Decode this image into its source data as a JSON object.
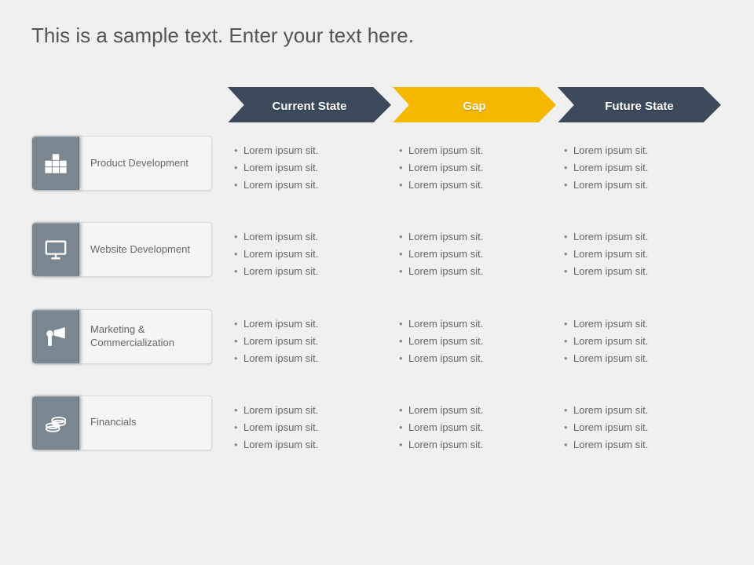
{
  "title": "This is a sample text. Enter your text here.",
  "colors": {
    "chevron_dark": "#3c4a5c",
    "chevron_highlight": "#f5b800",
    "icon_box": "#7a8690",
    "icon_box_border": "#5a6670",
    "card_bg": "#f5f5f5",
    "page_bg": "#f0f0f0",
    "text_muted": "#666666"
  },
  "columns": [
    {
      "label": "Current State",
      "highlight": false
    },
    {
      "label": "Gap",
      "highlight": true
    },
    {
      "label": "Future State",
      "highlight": false
    }
  ],
  "rows": [
    {
      "icon": "blocks",
      "label": "Product Development",
      "cells": [
        [
          "Lorem ipsum sit.",
          "Lorem ipsum sit.",
          "Lorem ipsum sit."
        ],
        [
          "Lorem ipsum sit.",
          "Lorem ipsum sit.",
          "Lorem ipsum sit."
        ],
        [
          "Lorem ipsum sit.",
          "Lorem ipsum sit.",
          "Lorem ipsum sit."
        ]
      ]
    },
    {
      "icon": "monitor",
      "label": "Website Development",
      "cells": [
        [
          "Lorem ipsum sit.",
          "Lorem ipsum sit.",
          "Lorem ipsum sit."
        ],
        [
          "Lorem ipsum sit.",
          "Lorem ipsum sit.",
          "Lorem ipsum sit."
        ],
        [
          "Lorem ipsum sit.",
          "Lorem ipsum sit.",
          "Lorem ipsum sit."
        ]
      ]
    },
    {
      "icon": "megaphone",
      "label": "Marketing & Commercialization",
      "cells": [
        [
          "Lorem ipsum sit.",
          "Lorem ipsum sit.",
          "Lorem ipsum sit."
        ],
        [
          "Lorem ipsum sit.",
          "Lorem ipsum sit.",
          "Lorem ipsum sit."
        ],
        [
          "Lorem ipsum sit.",
          "Lorem ipsum sit.",
          "Lorem ipsum sit."
        ]
      ]
    },
    {
      "icon": "coins",
      "label": "Financials",
      "cells": [
        [
          "Lorem ipsum sit.",
          "Lorem ipsum sit.",
          "Lorem ipsum sit."
        ],
        [
          "Lorem ipsum sit.",
          "Lorem ipsum sit.",
          "Lorem ipsum sit."
        ],
        [
          "Lorem ipsum sit.",
          "Lorem ipsum sit.",
          "Lorem ipsum sit."
        ]
      ]
    }
  ]
}
